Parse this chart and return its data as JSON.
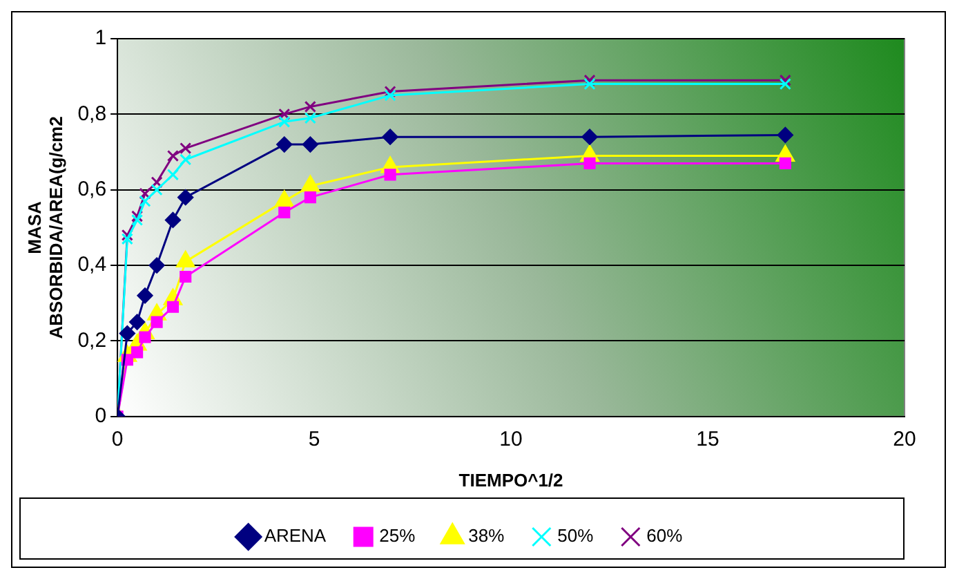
{
  "chart_data": {
    "type": "line",
    "xlabel": "TIEMPO^1/2",
    "ylabel": "MASA ABSORBIDA/AREA(g/cm2",
    "x": [
      0,
      0.25,
      0.5,
      0.7,
      1,
      1.41,
      1.73,
      4.24,
      4.9,
      6.93,
      12,
      16.97
    ],
    "series": [
      {
        "name": "ARENA",
        "color": "#000080",
        "marker": "diamond",
        "values": [
          0,
          0.22,
          0.25,
          0.32,
          0.4,
          0.52,
          0.58,
          0.72,
          0.72,
          0.74,
          0.74,
          0.745
        ]
      },
      {
        "name": "25%",
        "color": "#ff00ff",
        "marker": "square",
        "values": [
          0,
          0.15,
          0.17,
          0.21,
          0.25,
          0.29,
          0.37,
          0.54,
          0.58,
          0.64,
          0.67,
          0.67
        ]
      },
      {
        "name": "38%",
        "color": "#ffff00",
        "marker": "triangle",
        "values": [
          0,
          0.16,
          0.19,
          0.22,
          0.27,
          0.31,
          0.41,
          0.57,
          0.61,
          0.66,
          0.69,
          0.69
        ]
      },
      {
        "name": "50%",
        "color": "#00ffff",
        "marker": "cross",
        "values": [
          0,
          0.47,
          0.52,
          0.57,
          0.6,
          0.64,
          0.68,
          0.78,
          0.79,
          0.85,
          0.88,
          0.88
        ]
      },
      {
        "name": "60%",
        "color": "#800080",
        "marker": "cross",
        "values": [
          0,
          0.48,
          0.53,
          0.59,
          0.62,
          0.69,
          0.71,
          0.8,
          0.82,
          0.86,
          0.89,
          0.89
        ]
      }
    ],
    "xlim": [
      0,
      20
    ],
    "xticks": [
      0,
      5,
      10,
      15,
      20
    ],
    "ylim": [
      0,
      1
    ],
    "yticks": [
      0,
      {
        "value": 0.2,
        "label": "0,2"
      },
      {
        "value": 0.4,
        "label": "0,4"
      },
      {
        "value": 0.6,
        "label": "0,6"
      },
      {
        "value": 0.8,
        "label": "0,8"
      },
      1
    ],
    "grid": "y",
    "legend": "bottom",
    "line_style": "solid"
  }
}
